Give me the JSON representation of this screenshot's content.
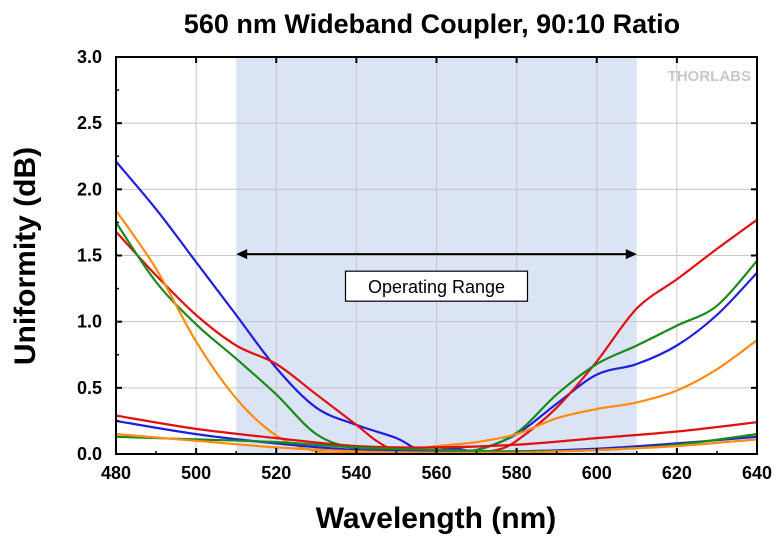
{
  "chart_data": {
    "type": "line",
    "title": "560 nm Wideband Coupler, 90:10 Ratio",
    "xlabel": "Wavelength (nm)",
    "ylabel": "Uniformity (dB)",
    "xlim": [
      480,
      640
    ],
    "ylim": [
      0,
      3
    ],
    "xticks": [
      "480",
      "500",
      "520",
      "540",
      "560",
      "580",
      "600",
      "620",
      "640"
    ],
    "yticks": [
      "0.0",
      "0.5",
      "1.0",
      "1.5",
      "2.0",
      "2.5",
      "3.0"
    ],
    "grid": true,
    "logo": "THORLABS",
    "shaded_region": {
      "x": [
        510,
        610
      ],
      "color": "#dbe4f5"
    },
    "annotation": {
      "text": "Operating Range",
      "x_start": 510,
      "x_end": 610,
      "y": 1.51
    },
    "series": [
      {
        "color": "#1f1fe0",
        "x": [
          480,
          490,
          500,
          510,
          520,
          530,
          540,
          550,
          555,
          560,
          565,
          570,
          580,
          590,
          600,
          610,
          620,
          630,
          640
        ],
        "values": [
          2.21,
          1.85,
          1.45,
          1.05,
          0.65,
          0.35,
          0.22,
          0.12,
          0.04,
          0.03,
          0.04,
          0.03,
          0.15,
          0.38,
          0.6,
          0.68,
          0.82,
          1.05,
          1.37
        ]
      },
      {
        "color": "#e01010",
        "x": [
          480,
          490,
          500,
          510,
          520,
          530,
          540,
          545,
          550,
          560,
          570,
          575,
          580,
          590,
          600,
          610,
          620,
          630,
          640
        ],
        "values": [
          1.68,
          1.35,
          1.05,
          0.82,
          0.68,
          0.45,
          0.22,
          0.1,
          0.03,
          0.02,
          0.02,
          0.03,
          0.1,
          0.35,
          0.7,
          1.1,
          1.32,
          1.55,
          1.77
        ]
      },
      {
        "color": "#1a8a1a",
        "x": [
          480,
          490,
          500,
          510,
          520,
          530,
          540,
          550,
          560,
          570,
          580,
          590,
          600,
          610,
          620,
          630,
          640
        ],
        "values": [
          1.75,
          1.3,
          0.98,
          0.72,
          0.45,
          0.15,
          0.04,
          0.03,
          0.02,
          0.03,
          0.16,
          0.45,
          0.68,
          0.82,
          0.97,
          1.12,
          1.46
        ]
      },
      {
        "color": "#ff8c10",
        "x": [
          480,
          490,
          500,
          510,
          520,
          530,
          540,
          550,
          560,
          570,
          580,
          590,
          600,
          610,
          620,
          630,
          640
        ],
        "values": [
          1.84,
          1.4,
          0.85,
          0.42,
          0.14,
          0.02,
          0.01,
          0.02,
          0.06,
          0.09,
          0.15,
          0.27,
          0.34,
          0.39,
          0.48,
          0.64,
          0.86
        ]
      },
      {
        "color": "#e01010",
        "x": [
          480,
          500,
          520,
          540,
          560,
          580,
          600,
          620,
          640
        ],
        "values": [
          0.29,
          0.19,
          0.12,
          0.06,
          0.05,
          0.07,
          0.12,
          0.17,
          0.24
        ]
      },
      {
        "color": "#1f1fe0",
        "x": [
          480,
          500,
          520,
          540,
          560,
          580,
          600,
          620,
          640
        ],
        "values": [
          0.25,
          0.15,
          0.08,
          0.03,
          0.02,
          0.02,
          0.04,
          0.08,
          0.13
        ]
      },
      {
        "color": "#1a8a1a",
        "x": [
          480,
          500,
          520,
          540,
          560,
          580,
          600,
          620,
          640
        ],
        "values": [
          0.13,
          0.11,
          0.09,
          0.05,
          0.03,
          0.02,
          0.03,
          0.07,
          0.15
        ]
      },
      {
        "color": "#ff8c10",
        "x": [
          480,
          500,
          520,
          540,
          560,
          580,
          600,
          620,
          640
        ],
        "values": [
          0.15,
          0.1,
          0.05,
          0.02,
          0.01,
          0.01,
          0.03,
          0.06,
          0.11
        ]
      }
    ]
  }
}
